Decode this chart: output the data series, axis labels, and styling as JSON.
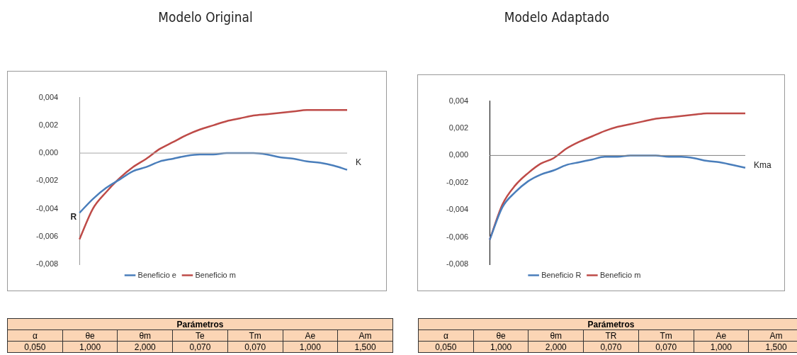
{
  "chart_data": [
    {
      "type": "line",
      "title": "Modelo Original",
      "xlabel": "K",
      "ylabel": "R",
      "categories": [
        null,
        null,
        null,
        null,
        null,
        null,
        null,
        null,
        null,
        null,
        null,
        null,
        null,
        null,
        null,
        null,
        null,
        null,
        null,
        null,
        null
      ],
      "series": [
        {
          "name": "Beneficio e",
          "color": "#4a7ebb",
          "values": [
            -0.0043,
            -0.0033,
            -0.0025,
            -0.0019,
            -0.0013,
            -0.001,
            -0.0006,
            -0.0004,
            -0.0002,
            -0.0001,
            -0.0001,
            0,
            0,
            0,
            -0.0001,
            -0.0003,
            -0.0004,
            -0.0006,
            -0.0007,
            -0.0009,
            -0.0012
          ]
        },
        {
          "name": "Beneficio m",
          "color": "#be4b48",
          "values": [
            -0.0062,
            -0.004,
            -0.0028,
            -0.0018,
            -0.001,
            -0.0004,
            0.0003,
            0.0008,
            0.0013,
            0.0017,
            0.002,
            0.0023,
            0.0025,
            0.0027,
            0.0028,
            0.0029,
            0.003,
            0.0031,
            0.0031,
            0.0031,
            0.0031
          ]
        }
      ],
      "ylim": [
        -0.008,
        0.004
      ],
      "yticks": [
        {
          "value": -0.008,
          "label": "-0,008"
        },
        {
          "value": -0.006,
          "label": "-0,006"
        },
        {
          "value": -0.004,
          "label": "-0,004"
        },
        {
          "value": -0.002,
          "label": "-0,002"
        },
        {
          "value": 0,
          "label": "0,000"
        },
        {
          "value": 0.002,
          "label": "0,002"
        },
        {
          "value": 0.004,
          "label": "0,004"
        }
      ],
      "ref_lines": [
        {
          "axis": "y",
          "value": 0,
          "color": "#a6a6a6"
        }
      ],
      "tick_labels": "y",
      "grid": false,
      "legend": "bottom",
      "marker": "none",
      "line_style": "solid"
    },
    {
      "type": "line",
      "title": "Modelo Adaptado",
      "xlabel": "Kma",
      "categories": [
        null,
        null,
        null,
        null,
        null,
        null,
        null,
        null,
        null,
        null,
        null,
        null,
        null,
        null,
        null,
        null,
        null,
        null,
        null,
        null,
        null
      ],
      "series": [
        {
          "name": "Beneficio R",
          "color": "#4a7ebb",
          "values": [
            -0.0062,
            -0.0038,
            -0.0027,
            -0.0019,
            -0.0014,
            -0.0011,
            -0.0007,
            -0.0005,
            -0.0003,
            -0.0001,
            -0.0001,
            0,
            0,
            0,
            -0.0001,
            -0.0001,
            -0.0002,
            -0.0004,
            -0.0005,
            -0.0007,
            -0.0009
          ]
        },
        {
          "name": "Beneficio m",
          "color": "#be4b48",
          "values": [
            -0.0062,
            -0.0036,
            -0.0022,
            -0.0013,
            -0.0006,
            -0.0002,
            0.0005,
            0.001,
            0.0014,
            0.0018,
            0.0021,
            0.0023,
            0.0025,
            0.0027,
            0.0028,
            0.0029,
            0.003,
            0.0031,
            0.0031,
            0.0031,
            0.0031
          ]
        }
      ],
      "ylim": [
        -0.008,
        0.004
      ],
      "yticks": [
        {
          "value": -0.008,
          "label": "-0,008"
        },
        {
          "value": -0.006,
          "label": "-0,006"
        },
        {
          "value": -0.004,
          "label": "-0,004"
        },
        {
          "value": -0.002,
          "label": "-0,002"
        },
        {
          "value": 0,
          "label": "0,000"
        },
        {
          "value": 0.002,
          "label": "0,002"
        },
        {
          "value": 0.004,
          "label": "0,004"
        }
      ],
      "ref_lines": [
        {
          "axis": "y",
          "value": 0,
          "color": "#808080"
        }
      ],
      "tick_labels": "y",
      "grid": false,
      "legend": "bottom",
      "marker": "none",
      "line_style": "solid"
    },
    {
      "type": "other",
      "title": "Parámetros",
      "annotations": [
        "α",
        "θe",
        "θm",
        "Te",
        "Tm",
        "Ae",
        "Am",
        "0,050",
        "1,000",
        "2,000",
        "0,070",
        "0,070",
        "1,000",
        "1,500"
      ]
    },
    {
      "type": "other",
      "title": "Parámetros",
      "annotations": [
        "α",
        "θe",
        "θm",
        "TR",
        "Tm",
        "Ae",
        "Am",
        "0,050",
        "1,000",
        "2,000",
        "0,070",
        "0,070",
        "1,000",
        "1,500"
      ]
    }
  ]
}
